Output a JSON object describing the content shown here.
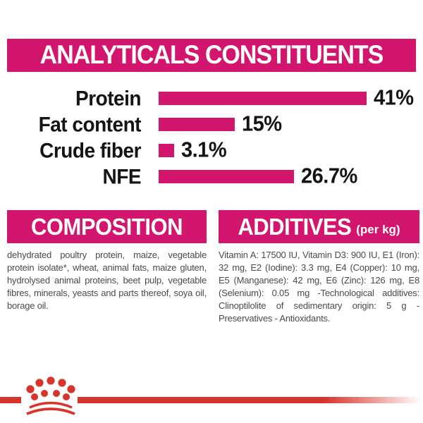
{
  "colors": {
    "magenta": "#D2156D",
    "red": "#D7352B",
    "heading_text": "#FFFFFF",
    "label_text": "#141414",
    "body_text": "#4A4A4A",
    "background": "#FFFFFF"
  },
  "header": {
    "title": "ANALYTICALS CONSTITUENTS"
  },
  "chart_data": {
    "type": "bar",
    "orientation": "horizontal",
    "title": "ANALYTICALS CONSTITUENTS",
    "categories": [
      "Protein",
      "Fat content",
      "Crude fiber",
      "NFE"
    ],
    "values": [
      41,
      15,
      3.1,
      26.7
    ],
    "value_labels": [
      "41%",
      "15%",
      "3.1%",
      "26.7%"
    ],
    "unit": "%",
    "xlim": [
      0,
      41
    ],
    "bar_color": "#D2156D",
    "grid": false,
    "legend": false
  },
  "composition": {
    "heading": "COMPOSITION",
    "body": "dehydrated poultry protein, maize, vegetable protein isolate*, wheat, animal fats, maize gluten, hydrolysed animal proteins, beet pulp, vegetable fibres, minerals, yeasts and parts thereof, soya oil, borage oil."
  },
  "additives": {
    "heading": "ADDITIVES",
    "heading_suffix": "(per kg)",
    "body": "Vitamin A: 17500 IU, Vitamin D3: 900 IU, E1 (Iron): 32 mg, E2 (Iodine): 3.3 mg, E4 (Copper): 10 mg, E5 (Manganese): 42 mg, E6 (Zinc): 126 mg, E8 (Selenium): 0.05 mg -Technological additives: Clinoptilolite of sedimentary origin: 5 g - Preservatives - Antioxidants."
  },
  "footer": {
    "logo": "royal-canin-crown"
  }
}
